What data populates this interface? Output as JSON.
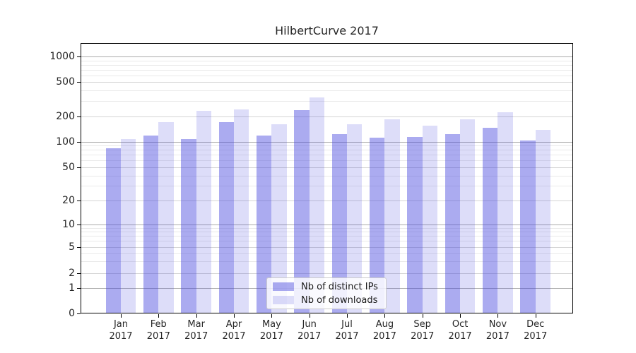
{
  "title": "HilbertCurve 2017",
  "chart_data": {
    "type": "bar",
    "title": "HilbertCurve 2017",
    "categories": [
      "Jan 2017",
      "Feb 2017",
      "Mar 2017",
      "Apr 2017",
      "May 2017",
      "Jun 2017",
      "Jul 2017",
      "Aug 2017",
      "Sep 2017",
      "Oct 2017",
      "Nov 2017",
      "Dec 2017"
    ],
    "months": [
      "Jan",
      "Feb",
      "Mar",
      "Apr",
      "May",
      "Jun",
      "Jul",
      "Aug",
      "Sep",
      "Oct",
      "Nov",
      "Dec"
    ],
    "x_tick_year": "2017",
    "series": [
      {
        "name": "Nb of distinct IPs",
        "color": "rgba(68,68,221,0.45)",
        "values": [
          84,
          118,
          108,
          169,
          117,
          235,
          122,
          111,
          113,
          122,
          147,
          104
        ]
      },
      {
        "name": "Nb of downloads",
        "color": "rgba(68,68,221,0.18)",
        "values": [
          108,
          169,
          232,
          239,
          160,
          330,
          160,
          184,
          153,
          185,
          222,
          138
        ]
      }
    ],
    "y_axis": {
      "scale": "symlog (log above 1, linear 0-1)",
      "ylim": [
        0,
        1450
      ],
      "ticks": [
        {
          "label": "0",
          "value": 0,
          "y": 444
        },
        {
          "label": "1",
          "value": 1,
          "y": 407.5
        },
        {
          "label": "2",
          "value": 2,
          "y": 386.7
        },
        {
          "label": "5",
          "value": 5,
          "y": 349.5
        },
        {
          "label": "10",
          "value": 10,
          "y": 318
        },
        {
          "label": "20",
          "value": 20,
          "y": 284.3
        },
        {
          "label": "50",
          "value": 50,
          "y": 237
        },
        {
          "label": "100",
          "value": 100,
          "y": 200.5
        },
        {
          "label": "200",
          "value": 200,
          "y": 164.5
        },
        {
          "label": "500",
          "value": 500,
          "y": 116.3
        },
        {
          "label": "1000",
          "value": 1000,
          "y": 80
        }
      ],
      "major_gridline_values": [
        1,
        10,
        100,
        1000
      ],
      "mid_gridline_values": [
        2,
        5,
        20,
        50,
        200,
        500
      ],
      "minor_gridline_values": [
        3,
        4,
        6,
        7,
        8,
        9,
        30,
        40,
        60,
        70,
        80,
        90,
        300,
        400,
        600,
        700,
        800,
        900
      ]
    },
    "legend": {
      "position": "lower center",
      "items": [
        "Nb of distinct IPs",
        "Nb of downloads"
      ]
    },
    "grid": true,
    "colors": {
      "bar_distinct_ips": "rgba(68,68,221,0.45)",
      "bar_downloads": "rgba(68,68,221,0.18)",
      "grid_major": "#ababab",
      "grid_mid": "#d4d4d4",
      "grid_sub": "#e9e9e9",
      "axis": "#000000",
      "text": "#262626"
    }
  }
}
